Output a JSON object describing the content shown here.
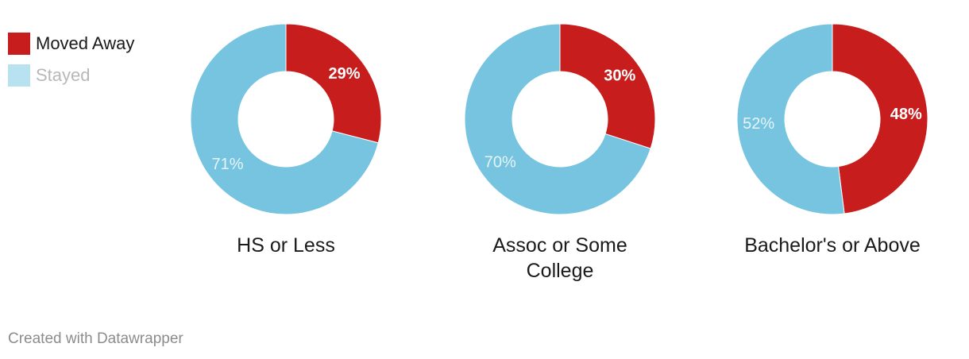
{
  "legend": [
    {
      "label": "Moved Away",
      "color": "#c71e1d",
      "text_color": "#1a1a1a",
      "swatch_color": "#c71e1d"
    },
    {
      "label": "Stayed",
      "color": "#76c4e0",
      "text_color": "#b8b8b8",
      "swatch_color": "#b9e2f1"
    }
  ],
  "chart_data": {
    "type": "pie",
    "variant": "donut",
    "series_names": [
      "Moved Away",
      "Stayed"
    ],
    "charts": [
      {
        "title": "HS or Less",
        "values": [
          29,
          71
        ],
        "labels": [
          "29%",
          "71%"
        ]
      },
      {
        "title": "Assoc or Some College",
        "values": [
          30,
          70
        ],
        "labels": [
          "30%",
          "70%"
        ]
      },
      {
        "title": "Bachelor's or Above",
        "values": [
          48,
          52
        ],
        "labels": [
          "48%",
          "52%"
        ]
      }
    ],
    "colors": {
      "moved_away": "#c71e1d",
      "stayed": "#76c4e0"
    },
    "label_colors": {
      "moved_away": "#ffffff",
      "stayed": "#e6f4fa"
    },
    "legend_position": "top-left"
  },
  "footer": {
    "credit": "Created with Datawrapper"
  }
}
